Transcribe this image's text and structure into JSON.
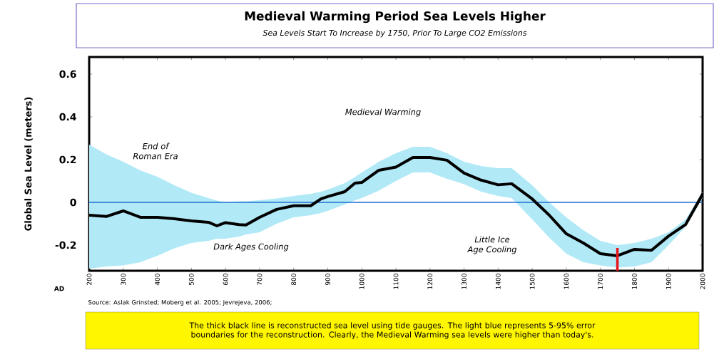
{
  "chart_data": {
    "type": "line",
    "title": "Medieval Warming Period Sea Levels Higher",
    "subtitle": "Sea Levels Start To Increase by 1750, Prior To Large CO2 Emissions",
    "xlabel": "AD",
    "ylabel": "Global Sea Level (meters)",
    "x": [
      200,
      250,
      300,
      350,
      400,
      450,
      500,
      550,
      575,
      600,
      640,
      660,
      700,
      750,
      800,
      850,
      880,
      900,
      950,
      980,
      1000,
      1050,
      1100,
      1150,
      1200,
      1250,
      1300,
      1350,
      1400,
      1440,
      1500,
      1550,
      1600,
      1650,
      1700,
      1750,
      1800,
      1850,
      1900,
      1950,
      2000
    ],
    "series": [
      {
        "color": "#000000",
        "values": [
          -0.06,
          -0.066,
          -0.04,
          -0.07,
          -0.07,
          -0.077,
          -0.087,
          -0.093,
          -0.11,
          -0.095,
          -0.104,
          -0.106,
          -0.07,
          -0.033,
          -0.016,
          -0.016,
          0.016,
          0.027,
          0.05,
          0.09,
          0.093,
          0.15,
          0.165,
          0.21,
          0.21,
          0.197,
          0.137,
          0.104,
          0.082,
          0.087,
          0.016,
          -0.06,
          -0.147,
          -0.19,
          -0.24,
          -0.25,
          -0.22,
          -0.224,
          -0.158,
          -0.104,
          0.038
        ],
        "upper": [
          0.27,
          0.225,
          0.19,
          0.15,
          0.12,
          0.08,
          0.045,
          0.02,
          0.008,
          0.0,
          0.005,
          0.005,
          0.01,
          0.018,
          0.03,
          0.04,
          0.05,
          0.06,
          0.09,
          0.118,
          0.14,
          0.19,
          0.23,
          0.26,
          0.26,
          0.23,
          0.19,
          0.17,
          0.16,
          0.16,
          0.08,
          0.0,
          -0.07,
          -0.13,
          -0.18,
          -0.2,
          -0.19,
          -0.17,
          -0.14,
          -0.08,
          0.05
        ],
        "lower": [
          -0.31,
          -0.3,
          -0.295,
          -0.28,
          -0.25,
          -0.215,
          -0.19,
          -0.18,
          -0.17,
          -0.17,
          -0.16,
          -0.15,
          -0.14,
          -0.1,
          -0.07,
          -0.06,
          -0.05,
          -0.04,
          -0.01,
          0.01,
          0.02,
          0.055,
          0.1,
          0.14,
          0.14,
          0.11,
          0.085,
          0.05,
          0.03,
          0.02,
          -0.08,
          -0.165,
          -0.24,
          -0.28,
          -0.295,
          -0.305,
          -0.3,
          -0.28,
          -0.2,
          -0.115,
          0.02
        ]
      }
    ],
    "xlim": [
      200,
      2000
    ],
    "xticks": [
      200,
      300,
      400,
      500,
      600,
      700,
      800,
      900,
      1000,
      1100,
      1200,
      1300,
      1400,
      1500,
      1600,
      1700,
      1800,
      1900,
      2000
    ],
    "ylim": [
      -0.32,
      0.68
    ],
    "yticks": [
      -0.2,
      0,
      0.2,
      0.4,
      0.6
    ],
    "ref_lines": [
      {
        "axis": "y",
        "value": 0,
        "color": "#1f6fd0"
      },
      {
        "axis": "x",
        "value": 1750,
        "color": "#e8141c"
      }
    ],
    "annotations": [
      "End of Roman Era",
      "Medieval Warming",
      "Dark Ages Cooling",
      "Little Ice Age Cooling",
      "Source: Aslak Grinsted; Moberg et al. 2005; Jevrejeva, 2006;",
      "The thick black line is reconstructed sea level using tide gauges. The light blue represents 5-95% error boundaries for the reconstruction. Clearly, the Medieval Warming sea levels were higher than today's."
    ]
  }
}
